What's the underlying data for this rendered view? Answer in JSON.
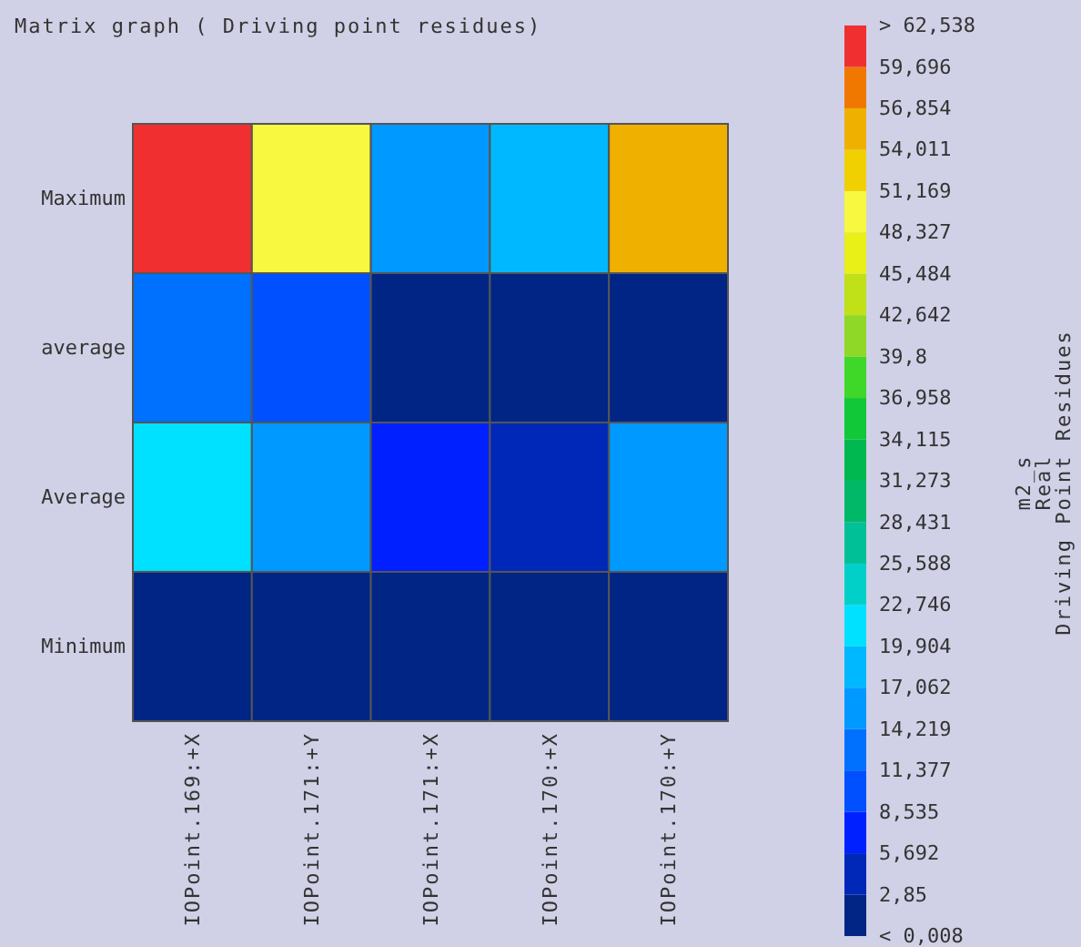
{
  "chart_data": {
    "type": "heatmap",
    "title": "Matrix graph ( Driving point residues)",
    "clabel": "m2_s\nReal\nDriving Point Residues",
    "categories": [
      "IOPoint.169:+X",
      "IOPoint.171:+Y",
      "IOPoint.171:+X",
      "IOPoint.170:+X",
      "IOPoint.170:+Y"
    ],
    "y_categories": [
      "Maximum",
      "average",
      "Average",
      "Minimum"
    ],
    "cells": [
      [
        61,
        49.7,
        15.6,
        18.5,
        55.4
      ],
      [
        12.8,
        10,
        1.4,
        1.4,
        1.4
      ],
      [
        21.3,
        15.6,
        7.1,
        4.3,
        15.6
      ],
      [
        1.4,
        1.4,
        1.4,
        1.4,
        1.4
      ]
    ],
    "clim": [
      0.008,
      62.538
    ],
    "cticks": [
      {
        "value": 0.008,
        "label": "< 0,008"
      },
      {
        "value": 2.85,
        "label": "2,85"
      },
      {
        "value": 5.692,
        "label": "5,692"
      },
      {
        "value": 8.535,
        "label": "8,535"
      },
      {
        "value": 11.377,
        "label": "11,377"
      },
      {
        "value": 14.219,
        "label": "14,219"
      },
      {
        "value": 17.062,
        "label": "17,062"
      },
      {
        "value": 19.904,
        "label": "19,904"
      },
      {
        "value": 22.746,
        "label": "22,746"
      },
      {
        "value": 25.588,
        "label": "25,588"
      },
      {
        "value": 28.431,
        "label": "28,431"
      },
      {
        "value": 31.273,
        "label": "31,273"
      },
      {
        "value": 34.115,
        "label": "34,115"
      },
      {
        "value": 36.958,
        "label": "36,958"
      },
      {
        "value": 39.8,
        "label": "39,8"
      },
      {
        "value": 42.642,
        "label": "42,642"
      },
      {
        "value": 45.484,
        "label": "45,484"
      },
      {
        "value": 48.327,
        "label": "48,327"
      },
      {
        "value": 51.169,
        "label": "51,169"
      },
      {
        "value": 54.011,
        "label": "54,011"
      },
      {
        "value": 56.854,
        "label": "56,854"
      },
      {
        "value": 59.696,
        "label": "59,696"
      },
      {
        "value": 62.538,
        "label": "> 62,538"
      }
    ],
    "colors": [
      "#002585",
      "#0028b8",
      "#0020ff",
      "#0050ff",
      "#0070ff",
      "#0099ff",
      "#00b8ff",
      "#00e0ff",
      "#00d0c8",
      "#00c098",
      "#00b868",
      "#00b850",
      "#10c838",
      "#40d828",
      "#90d828",
      "#c0e018",
      "#e8f018",
      "#f8f840",
      "#f0d000",
      "#f0b000",
      "#f07800",
      "#f03030"
    ]
  }
}
